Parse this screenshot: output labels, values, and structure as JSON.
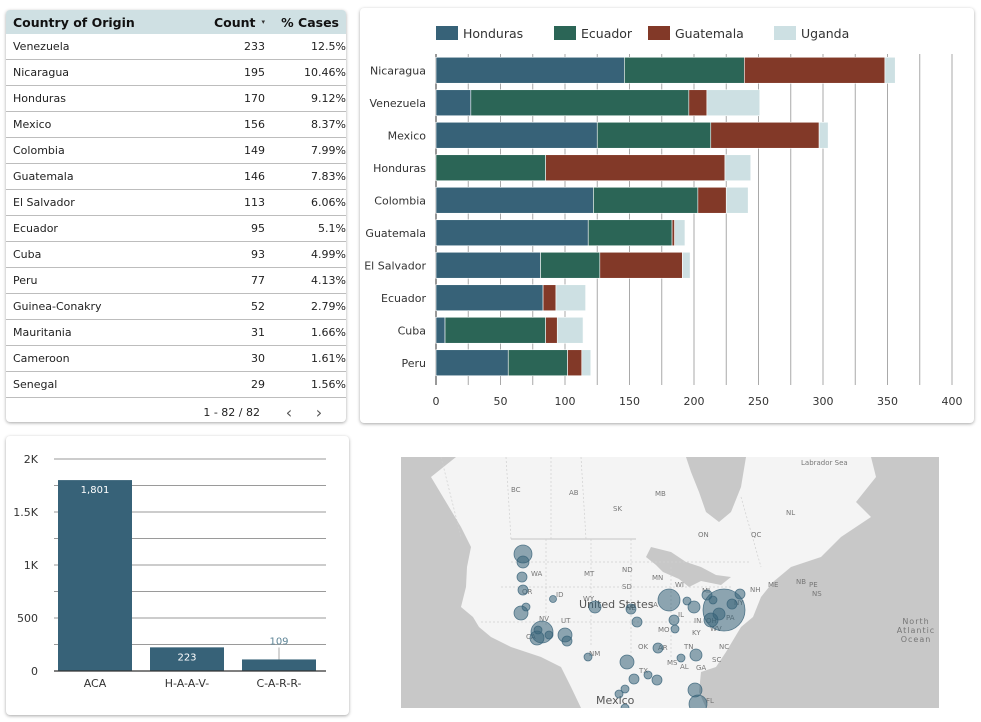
{
  "table": {
    "headers": {
      "country": "Country of Origin",
      "count": "Count",
      "pct": "% Cases"
    },
    "sort_indicator": "▾",
    "rows": [
      {
        "country": "Venezuela",
        "count": "233",
        "pct": "12.5%"
      },
      {
        "country": "Nicaragua",
        "count": "195",
        "pct": "10.46%"
      },
      {
        "country": "Honduras",
        "count": "170",
        "pct": "9.12%"
      },
      {
        "country": "Mexico",
        "count": "156",
        "pct": "8.37%"
      },
      {
        "country": "Colombia",
        "count": "149",
        "pct": "7.99%"
      },
      {
        "country": "Guatemala",
        "count": "146",
        "pct": "7.83%"
      },
      {
        "country": "El Salvador",
        "count": "113",
        "pct": "6.06%"
      },
      {
        "country": "Ecuador",
        "count": "95",
        "pct": "5.1%"
      },
      {
        "country": "Cuba",
        "count": "93",
        "pct": "4.99%"
      },
      {
        "country": "Peru",
        "count": "77",
        "pct": "4.13%"
      },
      {
        "country": "Guinea-Conakry",
        "count": "52",
        "pct": "2.79%"
      },
      {
        "country": "Mauritania",
        "count": "31",
        "pct": "1.66%"
      },
      {
        "country": "Cameroon",
        "count": "30",
        "pct": "1.61%"
      },
      {
        "country": "Senegal",
        "count": "29",
        "pct": "1.56%"
      }
    ],
    "pagination": "1 - 82 / 82",
    "prev_icon": "‹",
    "next_icon": "›"
  },
  "chart_data": [
    {
      "type": "bar",
      "orientation": "horizontal",
      "stacked": true,
      "categories": [
        "Nicaragua",
        "Venezuela",
        "Mexico",
        "Honduras",
        "Colombia",
        "Guatemala",
        "El Salvador",
        "Ecuador",
        "Cuba",
        "Peru"
      ],
      "series": [
        {
          "name": "Honduras",
          "color": "#376278",
          "values": [
            146,
            27,
            125,
            0,
            122,
            118,
            81,
            83,
            7,
            56
          ]
        },
        {
          "name": "Ecuador",
          "color": "#2b6556",
          "values": [
            93,
            169,
            88,
            85,
            81,
            65,
            46,
            0,
            78,
            46
          ]
        },
        {
          "name": "Guatemala",
          "color": "#823928",
          "values": [
            109,
            14,
            84,
            139,
            22,
            2,
            64,
            10,
            9,
            11
          ]
        },
        {
          "name": "Uganda",
          "color": "#cde0e3",
          "values": [
            8,
            41,
            7,
            20,
            17,
            8,
            6,
            23,
            20,
            7
          ]
        }
      ],
      "xlim": [
        0,
        400
      ],
      "xticks": [
        0,
        50,
        100,
        150,
        200,
        250,
        300,
        350,
        400
      ],
      "grid": true,
      "legend": "top-left"
    },
    {
      "type": "bar",
      "categories": [
        "ACA",
        "H-A-A-V-",
        "C-A-R-R-"
      ],
      "values": [
        1801,
        223,
        109
      ],
      "data_labels": [
        "1,801",
        "223",
        "109"
      ],
      "color": "#376278",
      "ylim": [
        0,
        2000
      ],
      "yticks": [
        0,
        500,
        1000,
        1500,
        2000
      ],
      "ytick_labels": [
        "0",
        "500",
        "1K",
        "1.5K",
        "2K"
      ],
      "grid": true
    }
  ],
  "map": {
    "labels": {
      "countries": [
        "United States",
        "Mexico"
      ],
      "water": [
        "Labrador Sea",
        "North Atlantic Ocean"
      ],
      "regions": [
        "BC",
        "AB",
        "SK",
        "MB",
        "ON",
        "QC",
        "NL",
        "NB",
        "PE",
        "NS",
        "WA",
        "OR",
        "ID",
        "MT",
        "WY",
        "ND",
        "SD",
        "NE",
        "MN",
        "WI",
        "MI",
        "IA",
        "IL",
        "IN",
        "OH",
        "PA",
        "NY",
        "NH",
        "ME",
        "NV",
        "UT",
        "CA",
        "NM",
        "OK",
        "TX",
        "AR",
        "MO",
        "KY",
        "WV",
        "TN",
        "NC",
        "SC",
        "MS",
        "AL",
        "GA",
        "FL"
      ]
    },
    "bubble_color": "#376278"
  }
}
